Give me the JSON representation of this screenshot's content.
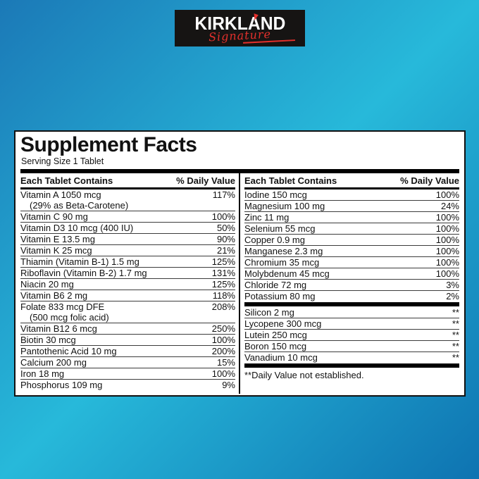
{
  "colors": {
    "background_start": "#1b79b7",
    "background_mid": "#27b9da",
    "background_end": "#0e73b1",
    "logo_bg": "#161413",
    "logo_red": "#e4302c",
    "panel_bg": "#ffffff"
  },
  "logo": {
    "brand": "KIRKLAND",
    "script": "Signature"
  },
  "panel": {
    "title": "Supplement Facts",
    "serving_size": "Serving Size 1 Tablet",
    "columns": [
      {
        "header_name": "Each Tablet Contains",
        "header_value": "% Daily Value",
        "rows": [
          {
            "name": "Vitamin A 1050 mcg",
            "name2": "(29% as Beta-Carotene)",
            "dv": "117%"
          },
          {
            "name": "Vitamin C 90 mg",
            "dv": "100%"
          },
          {
            "name": "Vitamin D3 10 mcg (400 IU)",
            "dv": "50%"
          },
          {
            "name": "Vitamin E 13.5 mg",
            "dv": "90%"
          },
          {
            "name": "Vitamin K 25 mcg",
            "dv": "21%"
          },
          {
            "name": "Thiamin (Vitamin B-1) 1.5 mg",
            "dv": "125%"
          },
          {
            "name": "Riboflavin (Vitamin B-2) 1.7 mg",
            "dv": "131%"
          },
          {
            "name": "Niacin 20 mg",
            "dv": "125%"
          },
          {
            "name": "Vitamin B6 2 mg",
            "dv": "118%"
          },
          {
            "name": "Folate 833 mcg DFE",
            "name2": "(500 mcg folic acid)",
            "dv": "208%"
          },
          {
            "name": "Vitamin B12 6 mcg",
            "dv": "250%"
          },
          {
            "name": "Biotin 30 mcg",
            "dv": "100%"
          },
          {
            "name": "Pantothenic Acid 10 mg",
            "dv": "200%"
          },
          {
            "name": "Calcium 200 mg",
            "dv": "15%"
          },
          {
            "name": "Iron 18 mg",
            "dv": "100%"
          },
          {
            "name": "Phosphorus 109 mg",
            "dv": "9%"
          }
        ]
      },
      {
        "header_name": "Each Tablet Contains",
        "header_value": "% Daily Value",
        "rows": [
          {
            "name": "Iodine 150 mcg",
            "dv": "100%"
          },
          {
            "name": "Magnesium 100 mg",
            "dv": "24%"
          },
          {
            "name": "Zinc 11 mg",
            "dv": "100%"
          },
          {
            "name": "Selenium 55 mcg",
            "dv": "100%"
          },
          {
            "name": "Copper 0.9 mg",
            "dv": "100%"
          },
          {
            "name": "Manganese 2.3 mg",
            "dv": "100%"
          },
          {
            "name": "Chromium 35 mcg",
            "dv": "100%"
          },
          {
            "name": "Molybdenum 45 mcg",
            "dv": "100%"
          },
          {
            "name": "Chloride 72 mg",
            "dv": "3%"
          },
          {
            "name": "Potassium 80 mg",
            "dv": "2%"
          }
        ],
        "rows_not_established": [
          {
            "name": "Silicon 2 mg",
            "dv": "**"
          },
          {
            "name": "Lycopene 300 mcg",
            "dv": "**"
          },
          {
            "name": "Lutein 250 mcg",
            "dv": "**"
          },
          {
            "name": "Boron 150 mcg",
            "dv": "**"
          },
          {
            "name": "Vanadium 10 mcg",
            "dv": "**"
          }
        ],
        "footnote": "**Daily Value not established."
      }
    ]
  }
}
